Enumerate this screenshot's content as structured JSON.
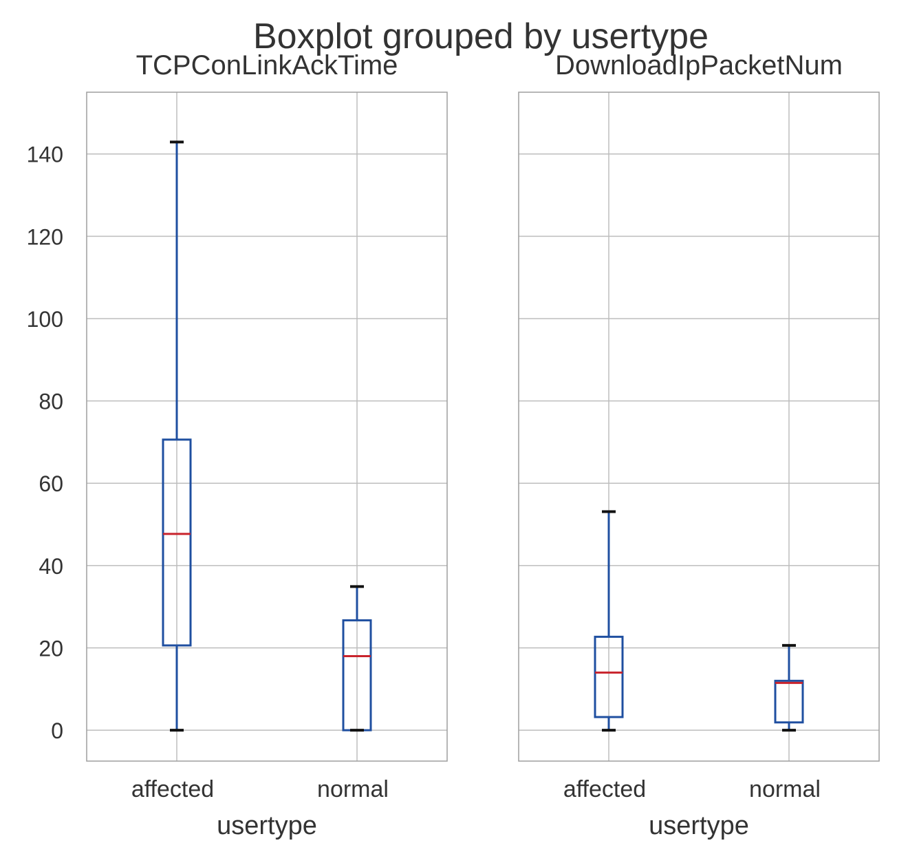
{
  "figure": {
    "suptitle": "Boxplot grouped by usertype"
  },
  "chart_data": [
    {
      "type": "box",
      "title": "TCPConLinkAckTime",
      "xlabel": "usertype",
      "ylabel": "",
      "categories": [
        "affected",
        "normal"
      ],
      "ylim": [
        -7.5,
        155
      ],
      "yticks": [
        0,
        20,
        40,
        60,
        80,
        100,
        120,
        140
      ],
      "grid": true,
      "boxes": [
        {
          "name": "affected",
          "whisker_low": 0,
          "q1": 20.6,
          "median": 47.7,
          "q3": 70.6,
          "whisker_high": 142.9
        },
        {
          "name": "normal",
          "whisker_low": 0,
          "q1": 0,
          "median": 18.0,
          "q3": 26.7,
          "whisker_high": 34.9
        }
      ]
    },
    {
      "type": "box",
      "title": "DownloadIpPacketNum",
      "xlabel": "usertype",
      "ylabel": "",
      "categories": [
        "affected",
        "normal"
      ],
      "ylim": [
        -7.5,
        155
      ],
      "yticks": [
        0,
        20,
        40,
        60,
        80,
        100,
        120,
        140
      ],
      "grid": true,
      "boxes": [
        {
          "name": "affected",
          "whisker_low": 0,
          "q1": 3.2,
          "median": 14.0,
          "q3": 22.7,
          "whisker_high": 53.1
        },
        {
          "name": "normal",
          "whisker_low": 0,
          "q1": 1.9,
          "median": 11.5,
          "q3": 12.0,
          "whisker_high": 20.6
        }
      ]
    }
  ],
  "colors": {
    "box": "#1f4fa0",
    "median": "#c8232c",
    "caps": "#111111",
    "grid": "#bdbdbd",
    "frame": "#9e9e9e"
  }
}
